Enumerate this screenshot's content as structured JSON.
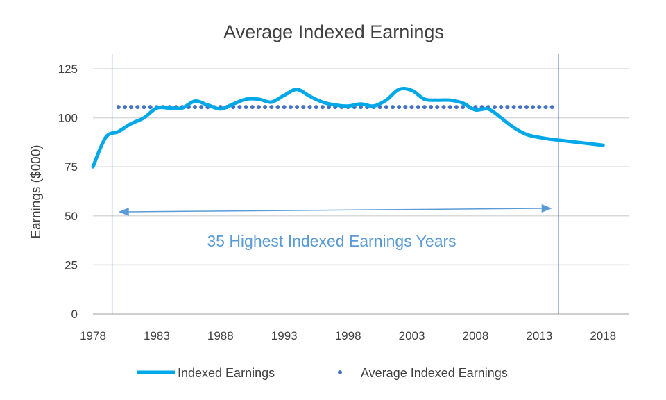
{
  "chart_data": {
    "type": "line",
    "title": "Average Indexed Earnings",
    "xlabel": "",
    "ylabel": "Earnings ($000)",
    "xlim": [
      1978,
      2020
    ],
    "ylim": [
      0,
      125
    ],
    "x_ticks": [
      "1978",
      "1983",
      "1988",
      "1993",
      "1998",
      "2003",
      "2008",
      "2013",
      "2018"
    ],
    "y_ticks": [
      "0",
      "25",
      "50",
      "75",
      "100",
      "125"
    ],
    "grid": "horizontal",
    "legend_position": "bottom",
    "series": [
      {
        "name": "Indexed Earnings",
        "style": "solid",
        "color": "#00a8e8",
        "x": [
          1978,
          1979,
          1980,
          1981,
          1982,
          1983,
          1984,
          1985,
          1986,
          1987,
          1988,
          1989,
          1990,
          1991,
          1992,
          1993,
          1994,
          1995,
          1996,
          1997,
          1998,
          1999,
          2000,
          2001,
          2002,
          2003,
          2004,
          2005,
          2006,
          2007,
          2008,
          2009,
          2010,
          2011,
          2012,
          2013,
          2014,
          2018
        ],
        "values": [
          75,
          90,
          93,
          97,
          100,
          105,
          105,
          105,
          108.5,
          106.5,
          104.5,
          107,
          109.5,
          109.5,
          108,
          111.5,
          114.5,
          111,
          108,
          106.5,
          106,
          107,
          106,
          109,
          114.5,
          114,
          109.5,
          109,
          109,
          107.5,
          104,
          104.5,
          100,
          95,
          91.5,
          90,
          89,
          86
        ]
      },
      {
        "name": "Average Indexed Earnings",
        "style": "dotted",
        "color": "#4472c4",
        "x": [
          1980,
          2014
        ],
        "values": [
          105.5,
          105.5
        ]
      }
    ],
    "vertical_markers": [
      1979.5,
      2014.5
    ],
    "range_arrow": {
      "from": 1980,
      "to": 2014,
      "label": "35 Highest Indexed Earnings Years"
    }
  }
}
